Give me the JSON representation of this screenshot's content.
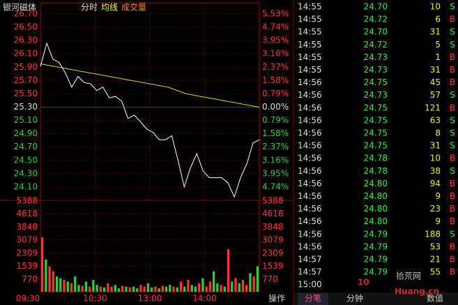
{
  "header": {
    "title": "银河磁体",
    "tabs": [
      "分时",
      "均线",
      "成交量"
    ]
  },
  "chart": {
    "price_ylim": [
      23.9,
      26.7
    ],
    "price_ticks": [
      "26.70",
      "26.50",
      "26.30",
      "26.10",
      "25.90",
      "25.70",
      "25.50",
      "25.30",
      "25.10",
      "24.90",
      "24.70",
      "24.50",
      "24.30",
      "24.10"
    ],
    "percent_ticks": [
      "5.53%",
      "4.74%",
      "3.95%",
      "3.16%",
      "2.37%",
      "1.58%",
      "0.79%",
      "0.00%",
      "0.79%",
      "1.58%",
      "2.37%",
      "3.16%",
      "3.95%",
      "4.74%"
    ],
    "volume_ylim": [
      0,
      5388
    ],
    "volume_ticks": [
      5388,
      4618,
      3848,
      3079,
      2309,
      1539,
      770
    ],
    "time_labels": [
      "09:30",
      "10:30",
      "13:00",
      "14:00"
    ],
    "price": [
      25.91,
      26.26,
      26.02,
      25.97,
      25.81,
      25.6,
      25.76,
      25.67,
      25.65,
      25.55,
      25.6,
      25.44,
      25.46,
      25.39,
      25.13,
      25.18,
      25.08,
      24.97,
      24.92,
      24.81,
      24.81,
      24.87,
      24.5,
      24.1,
      24.39,
      24.6,
      24.34,
      24.24,
      24.24,
      24.24,
      24.16,
      23.95,
      24.24,
      24.45,
      24.76,
      24.81
    ],
    "average": [
      25.95,
      25.9,
      25.85,
      25.8,
      25.75,
      25.7,
      25.65,
      25.6,
      25.5,
      25.45,
      25.4,
      25.35,
      25.3
    ],
    "volume": [
      3200,
      1900,
      1500,
      1200,
      900,
      800,
      700,
      600,
      500,
      900,
      400,
      350,
      600,
      300,
      700,
      400,
      300,
      250,
      500,
      300,
      400,
      200,
      350,
      300,
      250,
      300,
      200,
      400,
      300,
      500,
      250,
      300,
      200,
      350,
      300,
      400,
      300,
      250,
      600,
      300,
      700,
      400,
      300,
      500,
      800,
      300,
      600,
      1200,
      500,
      400,
      300,
      2500,
      600,
      800,
      500,
      700,
      400,
      1100,
      900,
      1500
    ],
    "rise": [
      1,
      0,
      1,
      1,
      0,
      0,
      1,
      0,
      1,
      0,
      0,
      1,
      0,
      1,
      0,
      0,
      1,
      0,
      1,
      1,
      0,
      0,
      1,
      0,
      1,
      0,
      0,
      1,
      1,
      0,
      0,
      1,
      0,
      1,
      0,
      0,
      1,
      0,
      1,
      0,
      1,
      0,
      0,
      1,
      0,
      1,
      1,
      0,
      0,
      1,
      0,
      1,
      0,
      1,
      0,
      1,
      1,
      0,
      1,
      0
    ]
  },
  "trades": [
    [
      "14:55",
      "24.70",
      "10",
      "S"
    ],
    [
      "14:55",
      "24.72",
      "6",
      "B"
    ],
    [
      "14:55",
      "24.70",
      "31",
      "S"
    ],
    [
      "14:55",
      "24.72",
      "5",
      "S"
    ],
    [
      "14:55",
      "24.73",
      "1",
      "B"
    ],
    [
      "14:55",
      "24.73",
      "31",
      "B"
    ],
    [
      "14:56",
      "24.75",
      "45",
      "B"
    ],
    [
      "14:56",
      "24.73",
      "57",
      "S"
    ],
    [
      "14:56",
      "24.75",
      "121",
      "B"
    ],
    [
      "14:56",
      "24.75",
      "63",
      "S"
    ],
    [
      "14:56",
      "24.75",
      "8",
      "S"
    ],
    [
      "14:56",
      "24.75",
      "31",
      "S"
    ],
    [
      "14:56",
      "24.78",
      "10",
      "B"
    ],
    [
      "14:56",
      "24.78",
      "38",
      "S"
    ],
    [
      "14:56",
      "24.80",
      "94",
      "B"
    ],
    [
      "14:56",
      "24.80",
      "9",
      "B"
    ],
    [
      "14:56",
      "24.80",
      "23",
      "B"
    ],
    [
      "14:56",
      "24.80",
      "9",
      "B"
    ],
    [
      "14:56",
      "24.79",
      "188",
      "S"
    ],
    [
      "14:56",
      "24.79",
      "53",
      "B"
    ],
    [
      "14:57",
      "24.79",
      "21",
      "B"
    ],
    [
      "14:57",
      "24.79",
      "55",
      "B"
    ],
    [
      "15:00"
    ]
  ],
  "footer": {
    "tabs": [
      "操作",
      "分笔",
      "分钟",
      "数值"
    ]
  },
  "watermark": [
    "10",
    "拾荒网",
    "Huang.cn"
  ]
}
